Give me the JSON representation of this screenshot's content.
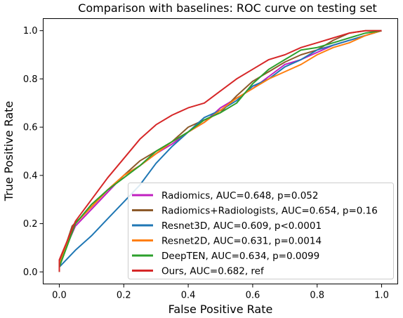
{
  "chart_data": {
    "type": "line",
    "title": "Comparison with baselines: ROC curve on testing set",
    "xlabel": "False Positive Rate",
    "ylabel": "True Positive Rate",
    "xlim": [
      -0.05,
      1.05
    ],
    "ylim": [
      -0.05,
      1.05
    ],
    "xticks": [
      "0.0",
      "0.2",
      "0.4",
      "0.6",
      "0.8",
      "1.0"
    ],
    "yticks": [
      "0.0",
      "0.2",
      "0.4",
      "0.6",
      "0.8",
      "1.0"
    ],
    "grid": false,
    "legend_position": "lower-right",
    "series": [
      {
        "name": "Radiomics, AUC=0.648, p=0.052",
        "color": "#c020c0",
        "x": [
          0,
          0,
          0.05,
          0.1,
          0.15,
          0.2,
          0.25,
          0.3,
          0.35,
          0.4,
          0.45,
          0.5,
          0.55,
          0.6,
          0.65,
          0.7,
          0.75,
          0.8,
          0.85,
          0.9,
          0.95,
          1.0
        ],
        "y": [
          0,
          0.04,
          0.19,
          0.26,
          0.33,
          0.4,
          0.44,
          0.49,
          0.53,
          0.58,
          0.62,
          0.68,
          0.72,
          0.76,
          0.81,
          0.86,
          0.88,
          0.91,
          0.94,
          0.96,
          0.98,
          1.0
        ]
      },
      {
        "name": "Radiomics+Radiologists, AUC=0.654, p=0.16",
        "color": "#8c5a2a",
        "x": [
          0,
          0,
          0.04,
          0.1,
          0.15,
          0.2,
          0.25,
          0.3,
          0.35,
          0.4,
          0.45,
          0.5,
          0.55,
          0.6,
          0.65,
          0.7,
          0.75,
          0.8,
          0.85,
          0.9,
          0.95,
          1.0
        ],
        "y": [
          0,
          0.03,
          0.19,
          0.27,
          0.34,
          0.4,
          0.46,
          0.5,
          0.54,
          0.6,
          0.63,
          0.66,
          0.73,
          0.79,
          0.83,
          0.87,
          0.9,
          0.92,
          0.96,
          0.99,
          1.0,
          1.0
        ]
      },
      {
        "name": "Resnet3D, AUC=0.609, p<0.0001",
        "color": "#1f77b4",
        "x": [
          0,
          0,
          0.05,
          0.1,
          0.15,
          0.2,
          0.25,
          0.3,
          0.35,
          0.4,
          0.45,
          0.5,
          0.55,
          0.6,
          0.65,
          0.7,
          0.75,
          0.8,
          0.85,
          0.9,
          0.95,
          1.0
        ],
        "y": [
          0,
          0.02,
          0.09,
          0.15,
          0.22,
          0.29,
          0.36,
          0.45,
          0.52,
          0.58,
          0.64,
          0.67,
          0.71,
          0.77,
          0.8,
          0.85,
          0.88,
          0.92,
          0.94,
          0.96,
          0.98,
          1.0
        ]
      },
      {
        "name": "Resnet2D, AUC=0.631, p=0.0014",
        "color": "#ff7f0e",
        "x": [
          0,
          0,
          0.05,
          0.1,
          0.15,
          0.2,
          0.25,
          0.3,
          0.35,
          0.4,
          0.45,
          0.5,
          0.55,
          0.6,
          0.65,
          0.7,
          0.75,
          0.8,
          0.85,
          0.9,
          0.95,
          1.0
        ],
        "y": [
          0,
          0.03,
          0.2,
          0.27,
          0.34,
          0.4,
          0.44,
          0.49,
          0.54,
          0.58,
          0.62,
          0.67,
          0.72,
          0.76,
          0.8,
          0.83,
          0.86,
          0.9,
          0.93,
          0.95,
          0.98,
          1.0
        ]
      },
      {
        "name": "DeepTEN, AUC=0.634, p=0.0099",
        "color": "#2ca02c",
        "x": [
          0,
          0,
          0.05,
          0.1,
          0.15,
          0.2,
          0.25,
          0.3,
          0.35,
          0.4,
          0.45,
          0.5,
          0.55,
          0.6,
          0.65,
          0.7,
          0.75,
          0.8,
          0.85,
          0.9,
          0.95,
          1.0
        ],
        "y": [
          0,
          0.02,
          0.2,
          0.28,
          0.34,
          0.39,
          0.44,
          0.5,
          0.54,
          0.58,
          0.63,
          0.66,
          0.7,
          0.78,
          0.84,
          0.88,
          0.92,
          0.93,
          0.95,
          0.97,
          0.99,
          1.0
        ]
      },
      {
        "name": "Ours, AUC=0.682, ref",
        "color": "#d62728",
        "x": [
          0,
          0,
          0.05,
          0.1,
          0.15,
          0.2,
          0.25,
          0.3,
          0.35,
          0.4,
          0.45,
          0.5,
          0.55,
          0.6,
          0.65,
          0.7,
          0.75,
          0.8,
          0.85,
          0.9,
          0.95,
          1.0
        ],
        "y": [
          0,
          0.05,
          0.21,
          0.3,
          0.39,
          0.47,
          0.55,
          0.61,
          0.65,
          0.68,
          0.7,
          0.75,
          0.8,
          0.84,
          0.88,
          0.9,
          0.93,
          0.95,
          0.97,
          0.99,
          1.0,
          1.0
        ]
      }
    ]
  }
}
